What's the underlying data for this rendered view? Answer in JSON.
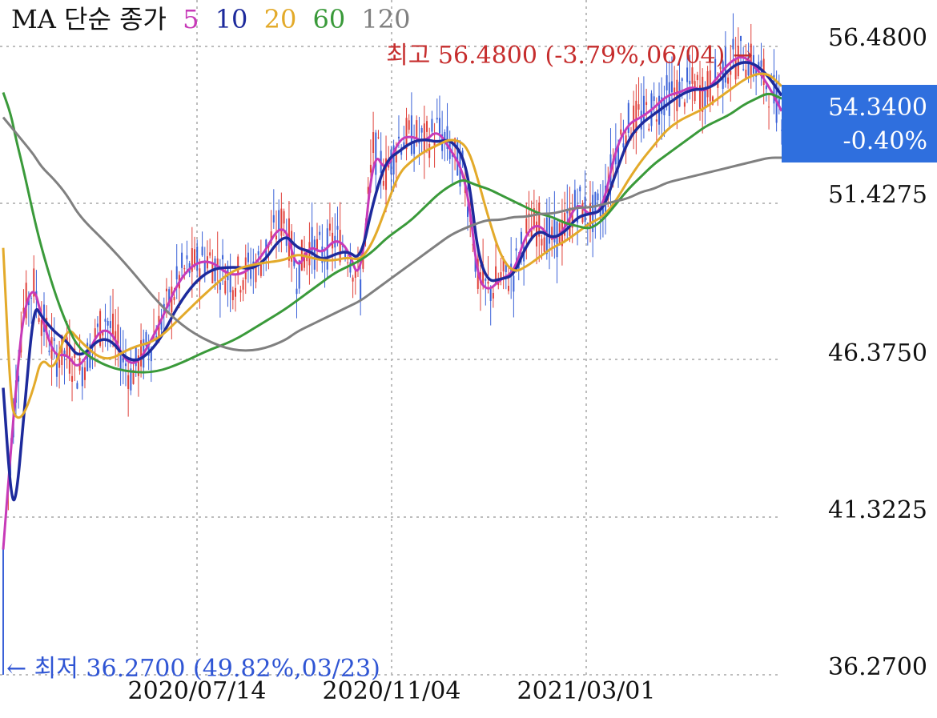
{
  "legend": {
    "label": "MA 단순 종가",
    "periods": [
      {
        "label": "5",
        "color": "#c73ab8"
      },
      {
        "label": "10",
        "color": "#1d2a9c"
      },
      {
        "label": "20",
        "color": "#e3aa2a"
      },
      {
        "label": "60",
        "color": "#3a9a3a"
      },
      {
        "label": "120",
        "color": "#808080"
      }
    ]
  },
  "colors": {
    "up": "#e0413a",
    "down": "#3b62d8",
    "grid": "#bdbdbd",
    "current_box": "#2f6fde"
  },
  "current": {
    "price": "54.3400",
    "change": "-0.40%"
  },
  "high_note": "최고 56.4800 (-3.79%,06/04) →",
  "low_note": "← 최저 36.2700 (49.82%,03/23)",
  "chart_data": {
    "type": "line",
    "title": "",
    "y_tick_labels": [
      "56.4800",
      "51.4275",
      "46.3750",
      "41.3225",
      "36.2700"
    ],
    "x_tick_labels": [
      "2020/07/14",
      "2020/11/04",
      "2021/03/01"
    ],
    "ylim": [
      36.27,
      56.48
    ],
    "grid": true,
    "high": {
      "value": 56.48,
      "change": "-3.79%",
      "date": "06/04"
    },
    "low": {
      "value": 36.27,
      "change": "49.82%",
      "date": "03/23"
    },
    "last": 54.34,
    "series_points_index": [
      0,
      3,
      5,
      8,
      12,
      15,
      20,
      25,
      30,
      40,
      50,
      60,
      70,
      80,
      90,
      100,
      110,
      115,
      120,
      125,
      130,
      135,
      140,
      145,
      150,
      155,
      160,
      165,
      170,
      175,
      180,
      183,
      186,
      190,
      195,
      200,
      205,
      210,
      215,
      220,
      225,
      230,
      235,
      240,
      245,
      250,
      255,
      260,
      265,
      270,
      275,
      280,
      285,
      290,
      295,
      300,
      305
    ],
    "series": [
      {
        "name": "5",
        "values": [
          40.3,
          43.5,
          45.5,
          48.0,
          48.8,
          47.8,
          46.5,
          46.6,
          46.0,
          47.8,
          45.9,
          47.3,
          49.2,
          49.7,
          49.0,
          49.5,
          51.0,
          49.2,
          50.1,
          49.8,
          50.3,
          50.0,
          48.8,
          53.2,
          52.4,
          53.5,
          53.6,
          53.4,
          53.8,
          53.2,
          52.5,
          51.2,
          49.0,
          48.6,
          49.0,
          49.2,
          50.5,
          50.8,
          50.2,
          50.6,
          51.5,
          51.0,
          51.3,
          53.2,
          54.0,
          54.2,
          54.5,
          54.9,
          55.0,
          55.2,
          55.0,
          55.5,
          56.0,
          56.2,
          55.8,
          55.2,
          54.4
        ]
      },
      {
        "name": "10",
        "values": [
          45.5,
          42.0,
          41.8,
          44.5,
          48.2,
          47.8,
          47.3,
          47.0,
          46.4,
          47.3,
          46.2,
          46.8,
          48.4,
          49.3,
          49.4,
          49.3,
          50.5,
          50.0,
          49.9,
          49.6,
          49.8,
          49.9,
          49.6,
          51.5,
          52.8,
          53.1,
          53.4,
          53.5,
          53.4,
          53.5,
          53.0,
          51.9,
          49.8,
          48.9,
          49.0,
          49.1,
          50.1,
          50.6,
          50.3,
          50.5,
          51.0,
          51.1,
          51.2,
          52.4,
          53.5,
          54.0,
          54.3,
          54.6,
          54.9,
          55.1,
          55.1,
          55.3,
          55.8,
          56.0,
          55.9,
          55.5,
          54.9
        ]
      },
      {
        "name": "20",
        "values": [
          50.0,
          45.0,
          44.5,
          44.6,
          45.5,
          46.5,
          46.0,
          47.5,
          47.0,
          46.3,
          46.8,
          47.0,
          47.8,
          48.6,
          49.3,
          49.5,
          49.6,
          49.8,
          49.7,
          49.6,
          49.6,
          49.7,
          49.6,
          50.2,
          51.3,
          52.4,
          52.8,
          53.1,
          53.3,
          53.5,
          53.4,
          53.0,
          52.2,
          51.0,
          49.7,
          49.2,
          49.4,
          49.7,
          50.0,
          50.2,
          50.5,
          50.8,
          51.0,
          51.5,
          52.2,
          52.8,
          53.3,
          53.8,
          54.1,
          54.3,
          54.5,
          54.8,
          55.1,
          55.4,
          55.6,
          55.6,
          55.2
        ]
      },
      {
        "name": "60",
        "values": [
          55.0,
          54.3,
          53.5,
          52.5,
          51.0,
          50.0,
          48.6,
          47.5,
          46.7,
          46.2,
          46.0,
          46.0,
          46.3,
          46.7,
          47.0,
          47.5,
          48.0,
          48.3,
          48.6,
          48.9,
          49.2,
          49.4,
          49.6,
          49.9,
          50.3,
          50.6,
          50.9,
          51.3,
          51.7,
          52.0,
          52.2,
          52.1,
          52.0,
          51.9,
          51.7,
          51.5,
          51.3,
          51.1,
          51.0,
          50.8,
          50.7,
          50.6,
          50.9,
          51.4,
          51.9,
          52.3,
          52.7,
          53.0,
          53.3,
          53.6,
          53.9,
          54.1,
          54.3,
          54.6,
          54.8,
          55.0,
          54.8
        ]
      },
      {
        "name": "120",
        "values": [
          54.2,
          53.9,
          53.7,
          53.4,
          53.0,
          52.6,
          52.2,
          51.7,
          51.0,
          50.2,
          49.3,
          48.3,
          47.5,
          47.0,
          46.7,
          46.7,
          47.0,
          47.3,
          47.5,
          47.7,
          47.9,
          48.1,
          48.3,
          48.6,
          48.9,
          49.2,
          49.5,
          49.8,
          50.1,
          50.4,
          50.6,
          50.7,
          50.8,
          50.9,
          50.9,
          51.0,
          51.0,
          51.1,
          51.1,
          51.2,
          51.3,
          51.3,
          51.4,
          51.5,
          51.6,
          51.8,
          51.9,
          52.1,
          52.2,
          52.3,
          52.4,
          52.5,
          52.6,
          52.7,
          52.8,
          52.9,
          52.9
        ]
      }
    ]
  }
}
